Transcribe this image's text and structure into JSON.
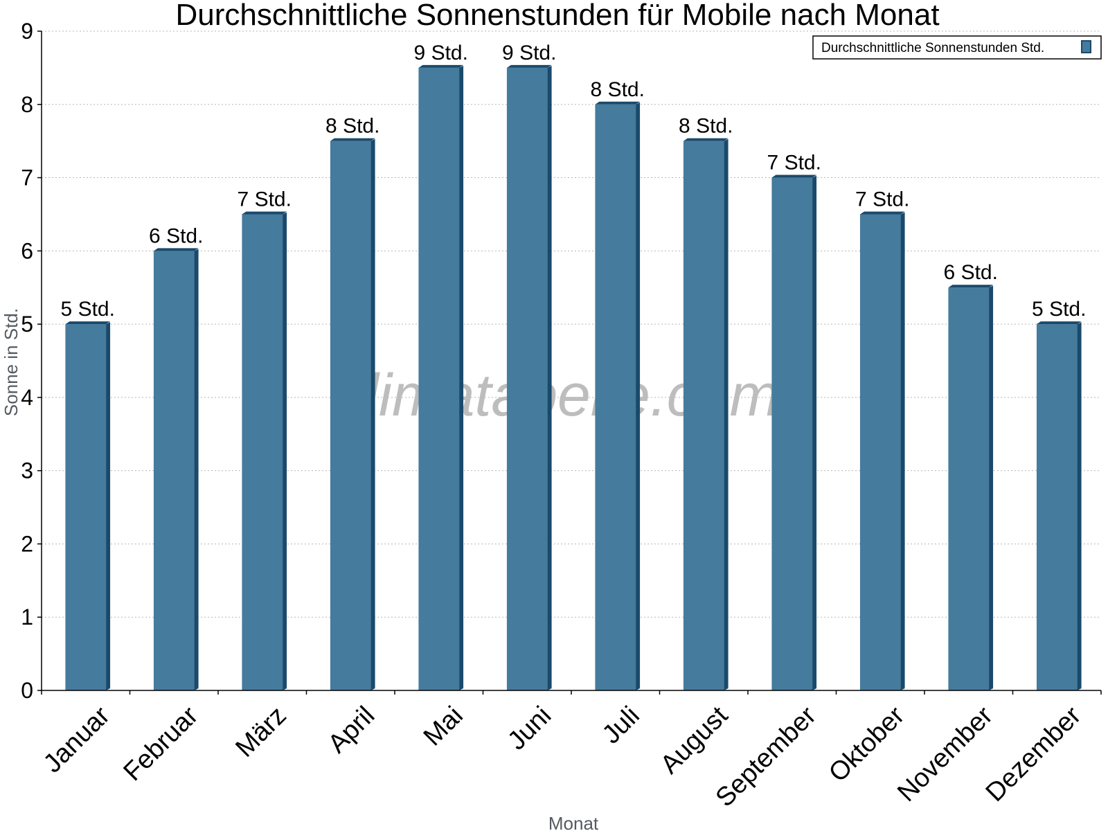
{
  "chart_data": {
    "type": "bar",
    "title": "Durchschnittliche Sonnenstunden für Mobile nach Monat",
    "xlabel": "Monat",
    "ylabel": "Sonne in Std.",
    "ylim": [
      0,
      9
    ],
    "yticks": [
      "0",
      "1",
      "2",
      "3",
      "4",
      "5",
      "6",
      "7",
      "8",
      "9"
    ],
    "grid": true,
    "legend_position": "top-right",
    "categories": [
      "Januar",
      "Februar",
      "März",
      "April",
      "Mai",
      "Juni",
      "Juli",
      "August",
      "September",
      "Oktober",
      "November",
      "Dezember"
    ],
    "series": [
      {
        "name": "Durchschnittliche Sonnenstunden Std.",
        "values": [
          5,
          6,
          6.5,
          7.5,
          8.5,
          8.5,
          8,
          7.5,
          7,
          6.5,
          5.5,
          5
        ],
        "labels": [
          "5 Std.",
          "6 Std.",
          "7 Std.",
          "8 Std.",
          "9 Std.",
          "9 Std.",
          "8 Std.",
          "8 Std.",
          "7 Std.",
          "7 Std.",
          "6 Std.",
          "5 Std."
        ],
        "color": "#457b9d",
        "edge_color": "#1a4a6b"
      }
    ],
    "watermark": "klimatabelle.com"
  }
}
